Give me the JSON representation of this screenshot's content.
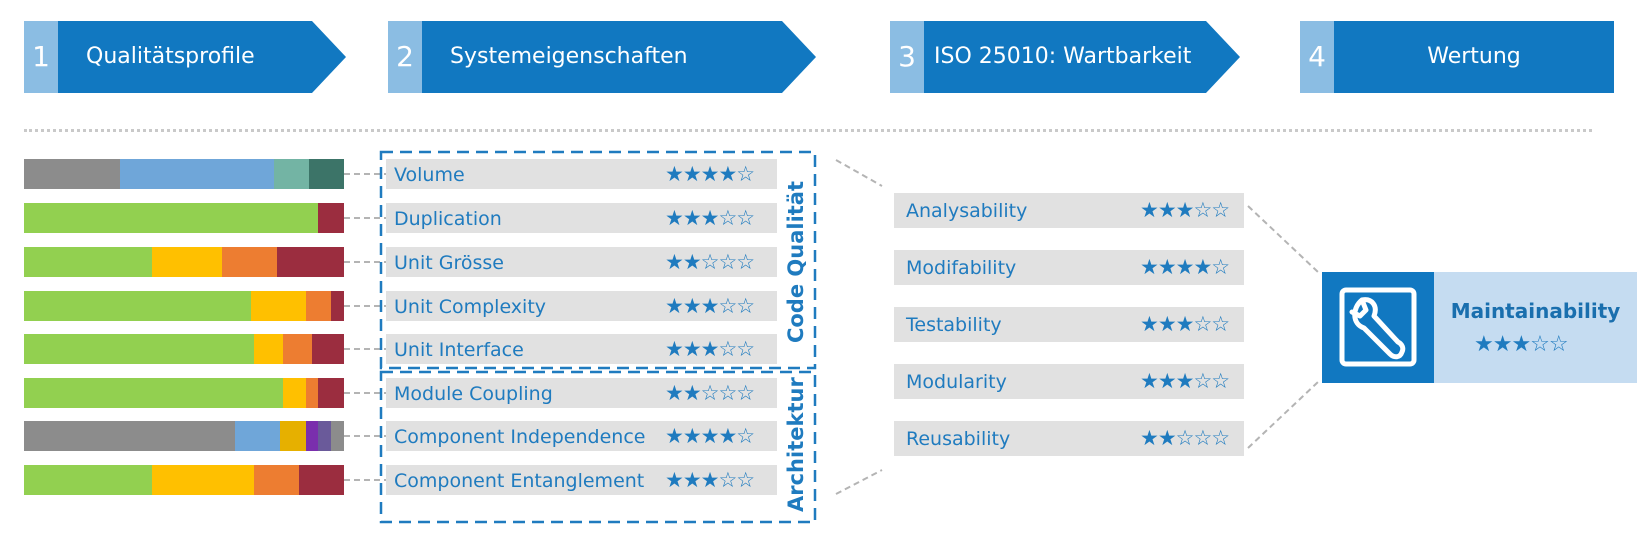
{
  "steps": [
    {
      "num": "1",
      "label": "Qualitätsprofile"
    },
    {
      "num": "2",
      "label": "Systemeigenschaften"
    },
    {
      "num": "3",
      "label": "ISO 25010: Wartbarkeit"
    },
    {
      "num": "4",
      "label": "Wertung"
    }
  ],
  "colors": {
    "accent": "#1178c1",
    "accent_light": "#8bbde3",
    "row_bg": "#e1e1e1",
    "result_bg": "#c5dcf1"
  },
  "profile_bars": [
    [
      {
        "color": "#8c8c8c",
        "share": 0.3
      },
      {
        "color": "#6fa6d9",
        "share": 0.48
      },
      {
        "color": "#73b4a4",
        "share": 0.11
      },
      {
        "color": "#3c7468",
        "share": 0.11
      }
    ],
    [
      {
        "color": "#92d050",
        "share": 0.92
      },
      {
        "color": "#9b2d3f",
        "share": 0.08
      }
    ],
    [
      {
        "color": "#92d050",
        "share": 0.4
      },
      {
        "color": "#ffc000",
        "share": 0.22
      },
      {
        "color": "#ed7d31",
        "share": 0.17
      },
      {
        "color": "#9b2d3f",
        "share": 0.21
      }
    ],
    [
      {
        "color": "#92d050",
        "share": 0.71
      },
      {
        "color": "#ffc000",
        "share": 0.17
      },
      {
        "color": "#ed7d31",
        "share": 0.08
      },
      {
        "color": "#9b2d3f",
        "share": 0.04
      }
    ],
    [
      {
        "color": "#92d050",
        "share": 0.72
      },
      {
        "color": "#ffc000",
        "share": 0.09
      },
      {
        "color": "#ed7d31",
        "share": 0.09
      },
      {
        "color": "#9b2d3f",
        "share": 0.1
      }
    ],
    [
      {
        "color": "#92d050",
        "share": 0.81
      },
      {
        "color": "#ffc000",
        "share": 0.07
      },
      {
        "color": "#ed7d31",
        "share": 0.04
      },
      {
        "color": "#9b2d3f",
        "share": 0.08
      }
    ],
    [
      {
        "color": "#8c8c8c",
        "share": 0.66
      },
      {
        "color": "#6fa6d9",
        "share": 0.14
      },
      {
        "color": "#e6b000",
        "share": 0.08
      },
      {
        "color": "#7a2fad",
        "share": 0.04
      },
      {
        "color": "#6a5a9a",
        "share": 0.04
      },
      {
        "color": "#8c8c8c",
        "share": 0.04
      }
    ],
    [
      {
        "color": "#92d050",
        "share": 0.4
      },
      {
        "color": "#ffc000",
        "share": 0.32
      },
      {
        "color": "#ed7d31",
        "share": 0.14
      },
      {
        "color": "#9b2d3f",
        "share": 0.14
      }
    ]
  ],
  "groups": {
    "code_quality": "Code Qualität",
    "architecture": "Architektur"
  },
  "properties": [
    {
      "label": "Volume",
      "stars": "★★★★☆"
    },
    {
      "label": "Duplication",
      "stars": "★★★☆☆"
    },
    {
      "label": "Unit Grösse",
      "stars": "★★☆☆☆"
    },
    {
      "label": "Unit Complexity",
      "stars": "★★★☆☆"
    },
    {
      "label": "Unit Interface",
      "stars": "★★★☆☆"
    },
    {
      "label": "Module Coupling",
      "stars": "★★☆☆☆"
    },
    {
      "label": "Component Independence",
      "stars": "★★★★☆"
    },
    {
      "label": "Component Entanglement",
      "stars": "★★★☆☆"
    }
  ],
  "iso": [
    {
      "label": "Analysability",
      "stars": "★★★☆☆"
    },
    {
      "label": "Modifability",
      "stars": "★★★★☆"
    },
    {
      "label": "Testability",
      "stars": "★★★☆☆"
    },
    {
      "label": "Modularity",
      "stars": "★★★☆☆"
    },
    {
      "label": "Reusability",
      "stars": "★★☆☆☆"
    }
  ],
  "result": {
    "label": "Maintainability",
    "stars": "★★★☆☆",
    "icon": "wrench-icon"
  }
}
